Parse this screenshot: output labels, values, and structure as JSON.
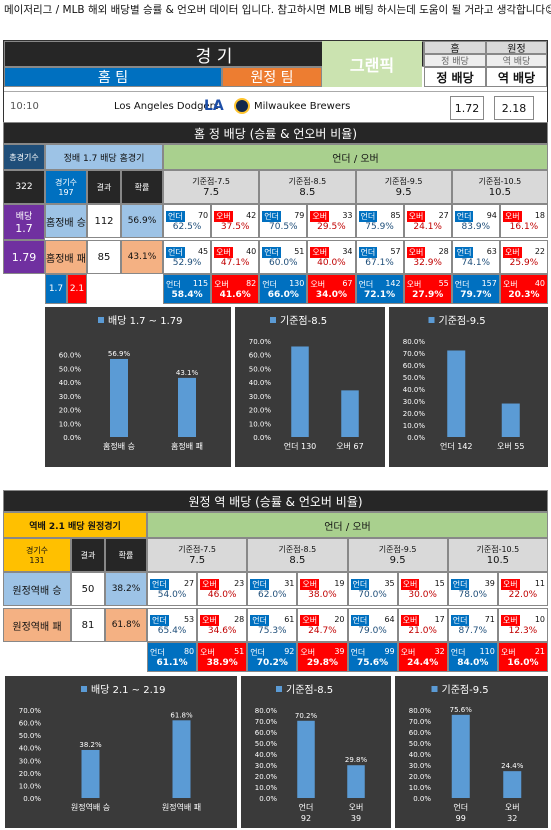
{
  "intro": "메이저리그 / MLB 해외 배당별 승률 & 언오버 데이터 입니다. 참고하시면 MLB 베팅 하시는데 도움이 될 거라고 생각합니다😊",
  "top": {
    "game_label": "경 기",
    "home_team_label": "홈 팀",
    "away_team_label": "원정 팀",
    "watermark": "그랜픽",
    "home_header": "홈",
    "home_sub": "정 배당",
    "home_main": "정 배당",
    "away_header": "원정",
    "away_sub": "역 배당",
    "away_main": "역 배당",
    "time": "10:10",
    "home_team": "Los Angeles Dodgers",
    "away_team": "Milwaukee Brewers",
    "home_odds": "1.72",
    "away_odds": "2.18"
  },
  "sec1": {
    "title": "홈 정 배당 (승률 & 언오버 비율)",
    "total_games_label": "총경기수",
    "total_games": "322",
    "odds_label": "정배  1.7  배당  홈경기",
    "games_label": "경기수",
    "games_value": "197",
    "result_label": "결과",
    "prob_label": "확률",
    "side_label": "배당",
    "side_low": "1.7",
    "side_high": "1.79",
    "range_low": "1.7",
    "range_high": "2.1",
    "under_over_header": "언더 / 오버",
    "rows": [
      {
        "label": "홈정배 승",
        "count": "112",
        "pct": "56.9%"
      },
      {
        "label": "홈정배 패",
        "count": "85",
        "pct": "43.1%"
      }
    ],
    "baselines": [
      {
        "title": "기준점-7.5",
        "value": "7.5"
      },
      {
        "title": "기준점-8.5",
        "value": "8.5"
      },
      {
        "title": "기준점-9.5",
        "value": "9.5"
      },
      {
        "title": "기준점-10.5",
        "value": "10.5"
      }
    ],
    "win_row": [
      {
        "u": "70",
        "o": "42",
        "up": "62.5%",
        "op": "37.5%"
      },
      {
        "u": "79",
        "o": "33",
        "up": "70.5%",
        "op": "29.5%"
      },
      {
        "u": "85",
        "o": "27",
        "up": "75.9%",
        "op": "24.1%"
      },
      {
        "u": "94",
        "o": "18",
        "up": "83.9%",
        "op": "16.1%"
      }
    ],
    "loss_row": [
      {
        "u": "45",
        "o": "40",
        "up": "52.9%",
        "op": "47.1%"
      },
      {
        "u": "51",
        "o": "34",
        "up": "60.0%",
        "op": "40.0%"
      },
      {
        "u": "57",
        "o": "28",
        "up": "67.1%",
        "op": "32.9%"
      },
      {
        "u": "63",
        "o": "22",
        "up": "74.1%",
        "op": "25.9%"
      }
    ],
    "total_row": [
      {
        "u": "115",
        "o": "82",
        "up": "58.4%",
        "op": "41.6%"
      },
      {
        "u": "130",
        "o": "67",
        "up": "66.0%",
        "op": "34.0%"
      },
      {
        "u": "142",
        "o": "55",
        "up": "72.1%",
        "op": "27.9%"
      },
      {
        "u": "157",
        "o": "40",
        "up": "79.7%",
        "op": "20.3%"
      }
    ],
    "under_label": "언더",
    "over_label": "오버"
  },
  "sec2": {
    "title": "원정 역 배당 (승률 & 언오버 비율)",
    "odds_label": "역배    2.1    배당  원정경기",
    "games_label": "경기수",
    "games_value": "131",
    "result_label": "결과",
    "prob_label": "확률",
    "under_over_header": "언더 / 오버",
    "rows": [
      {
        "label": "원정역배 승",
        "count": "50",
        "pct": "38.2%"
      },
      {
        "label": "원정역배 패",
        "count": "81",
        "pct": "61.8%"
      }
    ],
    "baselines": [
      {
        "title": "기준점-7.5",
        "value": "7.5"
      },
      {
        "title": "기준점-8.5",
        "value": "8.5"
      },
      {
        "title": "기준점-9.5",
        "value": "9.5"
      },
      {
        "title": "기준점-10.5",
        "value": "10.5"
      }
    ],
    "win_row": [
      {
        "u": "27",
        "o": "23",
        "up": "54.0%",
        "op": "46.0%"
      },
      {
        "u": "31",
        "o": "19",
        "up": "62.0%",
        "op": "38.0%"
      },
      {
        "u": "35",
        "o": "15",
        "up": "70.0%",
        "op": "30.0%"
      },
      {
        "u": "39",
        "o": "11",
        "up": "78.0%",
        "op": "22.0%"
      }
    ],
    "loss_row": [
      {
        "u": "53",
        "o": "28",
        "up": "65.4%",
        "op": "34.6%"
      },
      {
        "u": "61",
        "o": "20",
        "up": "75.3%",
        "op": "24.7%"
      },
      {
        "u": "64",
        "o": "17",
        "up": "79.0%",
        "op": "21.0%"
      },
      {
        "u": "71",
        "o": "10",
        "up": "87.7%",
        "op": "12.3%"
      }
    ],
    "total_row": [
      {
        "u": "80",
        "o": "51",
        "up": "61.1%",
        "op": "38.9%"
      },
      {
        "u": "92",
        "o": "39",
        "up": "70.2%",
        "op": "29.8%"
      },
      {
        "u": "99",
        "o": "32",
        "up": "75.6%",
        "op": "24.4%"
      },
      {
        "u": "110",
        "o": "21",
        "up": "84.0%",
        "op": "16.0%"
      }
    ],
    "under_label": "언더",
    "over_label": "오버"
  },
  "chart_data": [
    {
      "type": "bar",
      "title": "배당 1.7 ~ 1.79",
      "categories": [
        "홈정배 승",
        "홈정배 패"
      ],
      "values": [
        56.9,
        43.1
      ],
      "labels": [
        "56.9%",
        "43.1%"
      ],
      "ylim": [
        0,
        70
      ],
      "ticks": [
        "0.0%",
        "10.0%",
        "20.0%",
        "30.0%",
        "40.0%",
        "50.0%",
        "60.0%"
      ]
    },
    {
      "type": "bar",
      "title": "기준점-8.5",
      "categories": [
        "언더  130",
        "오버  67"
      ],
      "values": [
        66.0,
        34.0
      ],
      "labels": [
        "",
        ""
      ],
      "ylim": [
        0,
        70
      ],
      "ticks": [
        "0.0%",
        "10.0%",
        "20.0%",
        "30.0%",
        "40.0%",
        "50.0%",
        "60.0%",
        "70.0%"
      ]
    },
    {
      "type": "bar",
      "title": "기준점-9.5",
      "categories": [
        "언더  142",
        "오버  55"
      ],
      "values": [
        72.1,
        27.9
      ],
      "labels": [
        "",
        ""
      ],
      "ylim": [
        0,
        80
      ],
      "ticks": [
        "0.0%",
        "10.0%",
        "20.0%",
        "30.0%",
        "40.0%",
        "50.0%",
        "60.0%",
        "70.0%",
        "80.0%"
      ]
    },
    {
      "type": "bar",
      "title": "배당 2.1 ~ 2.19",
      "categories": [
        "원정역배 승",
        "원정역배 패"
      ],
      "values": [
        38.2,
        61.8
      ],
      "labels": [
        "38.2%",
        "61.8%"
      ],
      "ylim": [
        0,
        70
      ],
      "ticks": [
        "0.0%",
        "10.0%",
        "20.0%",
        "30.0%",
        "40.0%",
        "50.0%",
        "60.0%",
        "70.0%"
      ]
    },
    {
      "type": "bar",
      "title": "기준점-8.5",
      "categories": [
        "언더",
        "오버"
      ],
      "sub": [
        "92",
        "39"
      ],
      "values": [
        70.2,
        29.8
      ],
      "labels": [
        "70.2%",
        "29.8%"
      ],
      "ylim": [
        0,
        80
      ],
      "ticks": [
        "0.0%",
        "10.0%",
        "20.0%",
        "30.0%",
        "40.0%",
        "50.0%",
        "60.0%",
        "70.0%",
        "80.0%"
      ]
    },
    {
      "type": "bar",
      "title": "기준점-9.5",
      "categories": [
        "언더",
        "오버"
      ],
      "sub": [
        "99",
        "32"
      ],
      "values": [
        75.6,
        24.4
      ],
      "labels": [
        "75.6%",
        "24.4%"
      ],
      "ylim": [
        0,
        80
      ],
      "ticks": [
        "0.0%",
        "10.0%",
        "20.0%",
        "30.0%",
        "40.0%",
        "50.0%",
        "60.0%",
        "70.0%",
        "80.0%"
      ]
    }
  ]
}
